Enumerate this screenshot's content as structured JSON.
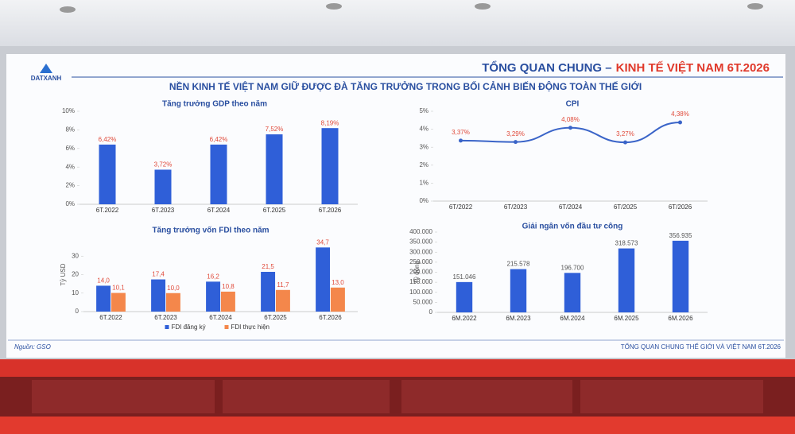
{
  "slide": {
    "title_part1": "TỔNG QUAN CHUNG –",
    "title_part2": "KINH TẾ VIỆT NAM 6T.2026",
    "subtitle": "NỀN KINH TẾ VIỆT NAM GIỮ ĐƯỢC ĐÀ TĂNG TRƯỞNG TRONG BỐI CẢNH BIẾN ĐỘNG TOÀN THẾ GIỚI",
    "logo": "DATXANH",
    "source": "Nguồn: GSO",
    "footer": "TỔNG QUAN CHUNG THẾ GIỚI VÀ VIỆT NAM 6T.2026"
  },
  "chart_data": [
    {
      "type": "bar",
      "title": "Tăng trưởng GDP theo năm",
      "categories": [
        "6T.2022",
        "6T.2023",
        "6T.2024",
        "6T.2025",
        "6T.2026"
      ],
      "values": [
        6.42,
        3.72,
        6.42,
        7.52,
        8.19
      ],
      "value_labels": [
        "6,42%",
        "3,72%",
        "6,42%",
        "7,52%",
        "8,19%"
      ],
      "color": "#2f5fd8",
      "label_color": "#e04a3a",
      "ylim": [
        0,
        10
      ],
      "yticks": [
        {
          "value": 0,
          "label": "0%"
        },
        {
          "value": 2,
          "label": "2%"
        },
        {
          "value": 4,
          "label": "4%"
        },
        {
          "value": 6,
          "label": "6%"
        },
        {
          "value": 8,
          "label": "8%"
        },
        {
          "value": 10,
          "label": "10%"
        }
      ],
      "grid": false
    },
    {
      "type": "line",
      "title": "CPI",
      "categories": [
        "6T/2022",
        "6T/2023",
        "6T/2024",
        "6T/2025",
        "6T/2026"
      ],
      "values": [
        3.37,
        3.29,
        4.08,
        3.27,
        4.38
      ],
      "value_labels": [
        "3,37%",
        "3,29%",
        "4,08%",
        "3,27%",
        "4,38%"
      ],
      "color": "#3a64c8",
      "label_color": "#e04a3a",
      "ylim": [
        0,
        5
      ],
      "yticks": [
        {
          "value": 0,
          "label": "0%"
        },
        {
          "value": 1,
          "label": "1%"
        },
        {
          "value": 2,
          "label": "2%"
        },
        {
          "value": 3,
          "label": "3%"
        },
        {
          "value": 4,
          "label": "4%"
        },
        {
          "value": 5,
          "label": "5%"
        }
      ],
      "grid": false
    },
    {
      "type": "bar",
      "title": "Tăng trưởng vốn FDI theo năm",
      "ylabel": "Tỷ USD",
      "categories": [
        "6T.2022",
        "6T.2023",
        "6T.2024",
        "6T.2025",
        "6T.2026"
      ],
      "series": [
        {
          "name": "FDI đăng ký",
          "color": "#2f5fd8",
          "values": [
            14.0,
            17.4,
            16.2,
            21.5,
            34.7
          ],
          "value_labels": [
            "14,0",
            "17,4",
            "16,2",
            "21,5",
            "34,7"
          ]
        },
        {
          "name": "FDI thực hiện",
          "color": "#f4874b",
          "values": [
            10.1,
            10.0,
            10.8,
            11.7,
            13.0
          ],
          "value_labels": [
            "10,1",
            "10,0",
            "10,8",
            "11,7",
            "13,0"
          ]
        }
      ],
      "label_color": "#e04a3a",
      "ylim": [
        0,
        40
      ],
      "yticks": [
        0,
        10,
        20,
        30
      ],
      "grid": false,
      "legend": "bottom"
    },
    {
      "type": "bar",
      "title": "Giải ngân vốn đầu tư công",
      "ylabel": "Tỷ đồng",
      "categories": [
        "6M.2022",
        "6M.2023",
        "6M.2024",
        "6M.2025",
        "6M.2026"
      ],
      "values": [
        151046,
        215578,
        196700,
        318573,
        356935
      ],
      "value_labels": [
        "151.046",
        "215.578",
        "196.700",
        "318.573",
        "356.935"
      ],
      "color": "#2f5fd8",
      "label_color": "#555555",
      "ylim": [
        0,
        400000
      ],
      "yticks": [
        0,
        {
          "value": 50000,
          "label": "50.000"
        },
        {
          "value": 100000,
          "label": "100.000"
        },
        {
          "value": 150000,
          "label": "150.000"
        },
        {
          "value": 200000,
          "label": "200.000"
        },
        {
          "value": 250000,
          "label": "250.000"
        },
        {
          "value": 300000,
          "label": "300.000"
        },
        {
          "value": 350000,
          "label": "350.000"
        },
        {
          "value": 400000,
          "label": "400.000"
        }
      ],
      "grid": false
    }
  ]
}
